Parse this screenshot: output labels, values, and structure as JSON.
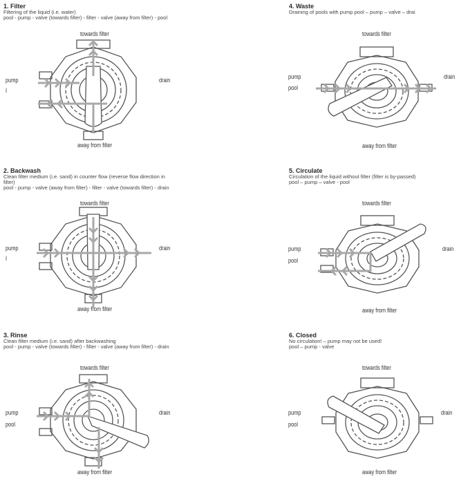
{
  "panels": [
    {
      "title": "1. Filter",
      "lines": [
        "Filtering of the liquid (i.e. water)",
        "pool - pump - valve (towards filter) - filter - valve (away from filter) - pool"
      ],
      "labels": {
        "top": "towards filter",
        "bottom": "away from filter",
        "left1": "pump",
        "left2": "I",
        "right": "drain"
      }
    },
    {
      "title": "4. Waste",
      "lines": [
        "Draining of pools with pump pool – pump – valve – drai"
      ],
      "labels": {
        "top": "towards filter",
        "bottom": "away from filter",
        "left1": "pump",
        "left2": "pool",
        "right": "drain"
      }
    },
    {
      "title": "2. Backwash",
      "lines": [
        "Clean filter medium (i.e. sand) in counter flow (reverse flow direction in",
        "filter)",
        "pool - pump - valve (away from filter) - filter - valve (towards filter) - drain"
      ],
      "labels": {
        "top": "towards filter",
        "bottom": "away from filter",
        "left1": "pump",
        "left2": "I",
        "right": "drain"
      }
    },
    {
      "title": "5. Circulate",
      "lines": [
        "Circulation of the liquid without filter (filter is by-passed)",
        "pool – pump – valve - pool"
      ],
      "labels": {
        "top": "towards filter",
        "bottom": "away from filter",
        "left1": "pump",
        "left2": "pool",
        "right": "drain"
      }
    },
    {
      "title": "3. Rinse",
      "lines": [
        "Clean filter medium (i.e. sand) after backwashing",
        "pool - pump - valve (towards filter) - filter - valve (away from filter) - drain"
      ],
      "labels": {
        "top": "towards filter",
        "bottom": "away from filter",
        "left1": "pump",
        "left2": "pool",
        "right": "drain"
      }
    },
    {
      "title": "6. Closed",
      "lines": [
        "No circulation! – pump may not be used!",
        "pool – pump - valve"
      ],
      "labels": {
        "top": "towards filter",
        "bottom": "away from filter",
        "left1": "pump",
        "left2": "pool",
        "right": "drain"
      }
    }
  ],
  "colors": {
    "line": "#555555",
    "arrow": "#a8a8a8",
    "text": "#333333"
  }
}
